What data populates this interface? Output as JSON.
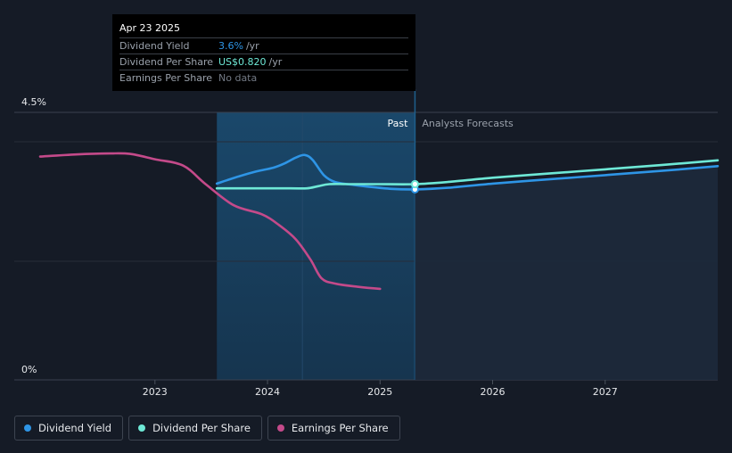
{
  "tooltip": {
    "date": "Apr 23 2025",
    "rows": [
      {
        "label": "Dividend Yield",
        "value": "3.6%",
        "suffix": "/yr",
        "color": "#2e95e6"
      },
      {
        "label": "Dividend Per Share",
        "value": "US$0.820",
        "suffix": "/yr",
        "color": "#6ee8d6"
      },
      {
        "label": "Earnings Per Share",
        "value": "No data",
        "suffix": "",
        "color": "#737a85"
      }
    ]
  },
  "legend": [
    {
      "label": "Dividend Yield",
      "color": "#2e95e6"
    },
    {
      "label": "Dividend Per Share",
      "color": "#6ee8d6"
    },
    {
      "label": "Earnings Per Share",
      "color": "#c44a8a"
    }
  ],
  "colors": {
    "background": "#151b26",
    "dividend_yield": "#2e95e6",
    "dividend_per_share": "#6ee8d6",
    "earnings_per_share": "#c44a8a"
  },
  "chart_data": {
    "type": "line",
    "xlim": [
      2021.75,
      2028.0
    ],
    "ylim": [
      0,
      4.5
    ],
    "ytick_labels": [
      {
        "value": 4.5,
        "label": "4.5%"
      },
      {
        "value": 0,
        "label": "0%"
      }
    ],
    "xticks": [
      {
        "value": 2023,
        "label": "2023"
      },
      {
        "value": 2024,
        "label": "2024"
      },
      {
        "value": 2025,
        "label": "2025"
      },
      {
        "value": 2026,
        "label": "2026"
      },
      {
        "value": 2027,
        "label": "2027"
      }
    ],
    "grid": true,
    "shaded_region": [
      2023.55,
      2025.31
    ],
    "past_divider": 2025.31,
    "past_label": "Past",
    "forecast_label": "Analysts Forecasts",
    "series": [
      {
        "name": "Dividend Yield",
        "color": "#2e95e6",
        "points": [
          [
            2023.55,
            3.71
          ],
          [
            2023.75,
            3.85
          ],
          [
            2023.9,
            3.94
          ],
          [
            2024.05,
            4.01
          ],
          [
            2024.15,
            4.09
          ],
          [
            2024.25,
            4.2
          ],
          [
            2024.33,
            4.25
          ],
          [
            2024.4,
            4.16
          ],
          [
            2024.5,
            3.87
          ],
          [
            2024.6,
            3.74
          ],
          [
            2024.75,
            3.69
          ],
          [
            2024.9,
            3.65
          ],
          [
            2025.1,
            3.61
          ],
          [
            2025.31,
            3.6
          ],
          [
            2025.6,
            3.63
          ],
          [
            2026.0,
            3.71
          ],
          [
            2026.5,
            3.79
          ],
          [
            2027.0,
            3.87
          ],
          [
            2027.5,
            3.95
          ],
          [
            2028.0,
            4.04
          ]
        ]
      },
      {
        "name": "Dividend Per Share",
        "color": "#6ee8d6",
        "points": [
          [
            2023.55,
            3.62
          ],
          [
            2023.9,
            3.62
          ],
          [
            2024.2,
            3.62
          ],
          [
            2024.35,
            3.62
          ],
          [
            2024.45,
            3.66
          ],
          [
            2024.55,
            3.7
          ],
          [
            2024.75,
            3.7
          ],
          [
            2025.0,
            3.7
          ],
          [
            2025.31,
            3.7
          ],
          [
            2025.6,
            3.74
          ],
          [
            2026.0,
            3.82
          ],
          [
            2026.5,
            3.9
          ],
          [
            2027.0,
            3.98
          ],
          [
            2027.5,
            4.06
          ],
          [
            2028.0,
            4.15
          ]
        ]
      },
      {
        "name": "Earnings Per Share",
        "color": "#c44a8a",
        "points": [
          [
            2021.98,
            4.22
          ],
          [
            2022.3,
            4.26
          ],
          [
            2022.6,
            4.28
          ],
          [
            2022.78,
            4.27
          ],
          [
            2023.0,
            4.17
          ],
          [
            2023.25,
            4.05
          ],
          [
            2023.45,
            3.7
          ],
          [
            2023.7,
            3.3
          ],
          [
            2023.95,
            3.13
          ],
          [
            2024.1,
            2.93
          ],
          [
            2024.25,
            2.66
          ],
          [
            2024.38,
            2.28
          ],
          [
            2024.48,
            1.92
          ],
          [
            2024.6,
            1.82
          ],
          [
            2024.8,
            1.76
          ],
          [
            2025.0,
            1.72
          ]
        ]
      }
    ]
  }
}
